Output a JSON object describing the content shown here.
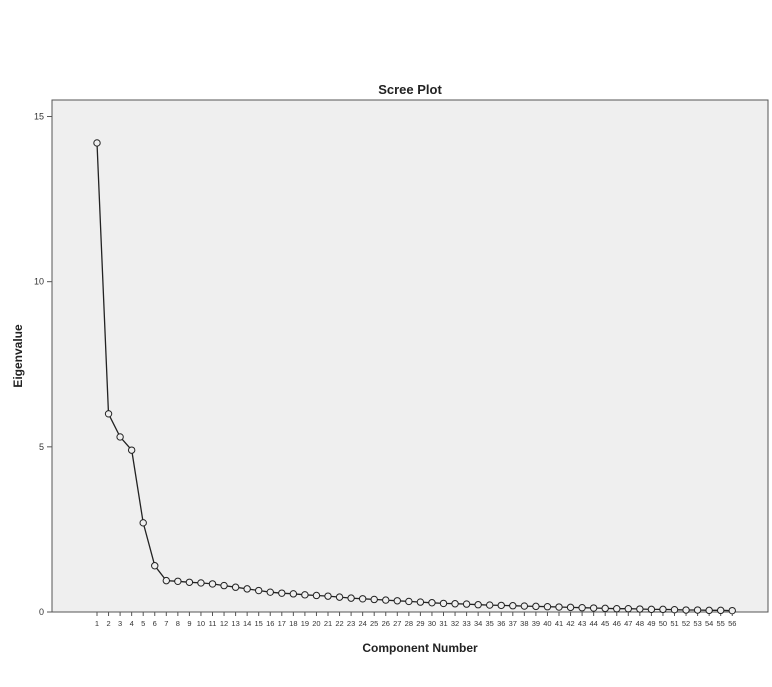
{
  "chart_data": {
    "type": "line",
    "title": "Scree Plot",
    "xlabel": "Component Number",
    "ylabel": "Eigenvalue",
    "ylim": [
      0,
      15.5
    ],
    "yticks": [
      0,
      5,
      10,
      15
    ],
    "grid": false,
    "legend": "none",
    "colors": {
      "plot_bg": "#efefef",
      "line": "#222222",
      "frame": "#555555"
    },
    "x": [
      1,
      2,
      3,
      4,
      5,
      6,
      7,
      8,
      9,
      10,
      11,
      12,
      13,
      14,
      15,
      16,
      17,
      18,
      19,
      20,
      21,
      22,
      23,
      24,
      25,
      26,
      27,
      28,
      29,
      30,
      31,
      32,
      33,
      34,
      35,
      36,
      37,
      38,
      39,
      40,
      41,
      42,
      43,
      44,
      45,
      46,
      47,
      48,
      49,
      50,
      51,
      52,
      53,
      54,
      55,
      56
    ],
    "x_tick_labels": [
      "1",
      "2",
      "3",
      "4",
      "5",
      "6",
      "7",
      "8",
      "9",
      "10",
      "11",
      "12",
      "13",
      "14",
      "15",
      "16",
      "17",
      "18",
      "19",
      "20",
      "21",
      "22",
      "23",
      "24",
      "25",
      "26",
      "27",
      "28",
      "29",
      "30",
      "31",
      "32",
      "33",
      "34",
      "35",
      "36",
      "37",
      "38",
      "39",
      "40",
      "41",
      "42",
      "43",
      "44",
      "45",
      "46",
      "47",
      "48",
      "49",
      "50",
      "51",
      "52",
      "53",
      "54",
      "55",
      "56"
    ],
    "series": [
      {
        "values": [
          14.2,
          6.0,
          5.3,
          4.9,
          2.7,
          1.4,
          0.95,
          0.93,
          0.9,
          0.88,
          0.85,
          0.8,
          0.75,
          0.7,
          0.65,
          0.6,
          0.57,
          0.55,
          0.52,
          0.5,
          0.48,
          0.45,
          0.42,
          0.4,
          0.38,
          0.36,
          0.34,
          0.32,
          0.3,
          0.28,
          0.26,
          0.25,
          0.24,
          0.22,
          0.21,
          0.2,
          0.19,
          0.18,
          0.17,
          0.16,
          0.15,
          0.14,
          0.13,
          0.12,
          0.11,
          0.1,
          0.1,
          0.09,
          0.08,
          0.08,
          0.07,
          0.06,
          0.06,
          0.05,
          0.05,
          0.04
        ]
      }
    ]
  }
}
